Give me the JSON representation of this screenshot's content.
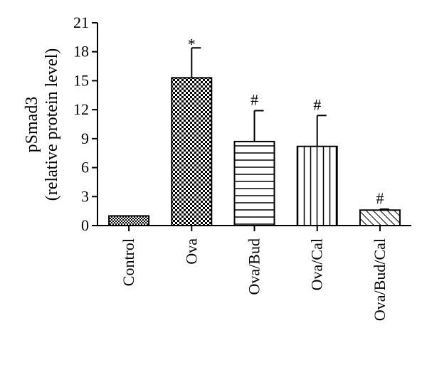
{
  "chart_data": {
    "type": "bar",
    "title": "",
    "xlabel": "",
    "ylabel_lines": [
      "pSmad3",
      "(relative protein level)"
    ],
    "ylim": [
      0,
      21
    ],
    "yticks": [
      "0",
      "3",
      "6",
      "9",
      "12",
      "15",
      "18",
      "21"
    ],
    "categories": [
      "Control",
      "Ova",
      "Ova/Bud",
      "Ova/Cal",
      "Ova/Bud/Cal"
    ],
    "values": [
      1.0,
      15.3,
      8.7,
      8.2,
      1.6
    ],
    "errors": [
      0,
      3.1,
      3.2,
      3.2,
      0.1
    ],
    "significance": [
      "",
      "*",
      "#",
      "#",
      "#"
    ],
    "patterns": [
      "checker-fine",
      "checker",
      "horizontal-lines",
      "vertical-lines",
      "diagonal-lines"
    ],
    "grid": false,
    "legend": "none"
  }
}
